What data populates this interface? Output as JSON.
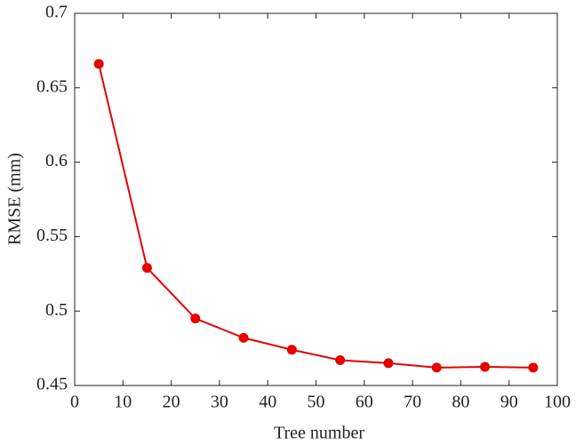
{
  "chart_data": {
    "type": "line",
    "xlabel": "Tree number",
    "ylabel": "RMSE (mm)",
    "x": [
      5,
      15,
      25,
      35,
      45,
      55,
      65,
      75,
      85,
      95
    ],
    "series": [
      {
        "color": "#e60000",
        "values": [
          0.666,
          0.529,
          0.495,
          0.482,
          0.474,
          0.467,
          0.465,
          0.462,
          0.4625,
          0.462
        ]
      }
    ],
    "xlim": [
      0,
      100
    ],
    "xticks": [
      0,
      10,
      20,
      30,
      40,
      50,
      60,
      70,
      80,
      90,
      100
    ],
    "ylim": [
      0.45,
      0.7
    ],
    "yticks": [
      0.45,
      0.5,
      0.55,
      0.6,
      0.65,
      0.7
    ],
    "grid": false,
    "box": true
  }
}
